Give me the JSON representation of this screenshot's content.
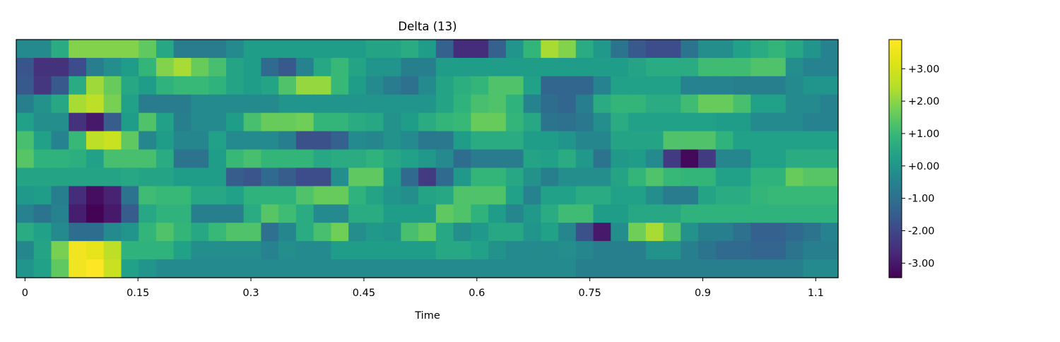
{
  "chart_data": {
    "type": "heatmap",
    "title": "Delta (13)",
    "xlabel": "Time",
    "ylabel": "",
    "x_ticks": [
      {
        "value": 0,
        "label": "0"
      },
      {
        "value": 0.15,
        "label": "0.15"
      },
      {
        "value": 0.3,
        "label": "0.3"
      },
      {
        "value": 0.45,
        "label": "0.45"
      },
      {
        "value": 0.6,
        "label": "0.6"
      },
      {
        "value": 0.75,
        "label": "0.75"
      },
      {
        "value": 0.9,
        "label": "0.9"
      },
      {
        "value": 1.05,
        "label": "1.1"
      }
    ],
    "x_range": [
      -0.0116,
      1.0797
    ],
    "frame_step": 0.02322,
    "n_rows": 13,
    "n_cols": 47,
    "colormap": "viridis",
    "vmin": -3.45,
    "vmax": 3.9,
    "colorbar_ticks": [
      {
        "value": 3,
        "label": "+3.00"
      },
      {
        "value": 2,
        "label": "+2.00"
      },
      {
        "value": 1,
        "label": "+1.00"
      },
      {
        "value": 0,
        "label": "+0.00"
      },
      {
        "value": -1,
        "label": "-1.00"
      },
      {
        "value": -2,
        "label": "-2.00"
      },
      {
        "value": -3,
        "label": "-3.00"
      }
    ],
    "rows": [
      [
        -0.3,
        -0.3,
        0.6,
        1.9,
        1.9,
        1.9,
        1.9,
        1.5,
        0.5,
        -0.7,
        -0.7,
        -0.7,
        -0.3,
        0.2,
        0.2,
        0.2,
        0.2,
        0.2,
        0.2,
        0.2,
        0.4,
        0.4,
        0.6,
        0.2,
        -1.4,
        -2.6,
        -2.6,
        -1.4,
        0.0,
        0.9,
        2.3,
        1.9,
        0.6,
        0.1,
        -0.9,
        -1.6,
        -1.9,
        -1.9,
        -0.9,
        -0.2,
        -0.2,
        0.3,
        0.6,
        0.9,
        0.5,
        0.0,
        -0.5
      ],
      [
        -1.7,
        -2.5,
        -2.5,
        -1.9,
        -0.6,
        -0.2,
        0.2,
        0.9,
        1.9,
        2.3,
        1.6,
        1.2,
        0.4,
        0.2,
        -1.2,
        -1.6,
        -0.5,
        0.5,
        1.0,
        0.4,
        0.0,
        0.0,
        -0.6,
        -0.6,
        0.2,
        0.2,
        0.2,
        0.2,
        0.2,
        0.2,
        0.2,
        0.2,
        0.2,
        0.2,
        0.2,
        0.4,
        0.6,
        0.6,
        0.6,
        1.1,
        1.1,
        1.1,
        1.3,
        1.3,
        -0.2,
        -0.5,
        -0.5
      ],
      [
        -1.6,
        -2.4,
        -1.6,
        0.6,
        2.2,
        1.6,
        0.5,
        0.2,
        0.8,
        1.0,
        1.0,
        0.8,
        0.4,
        0.2,
        0.4,
        1.3,
        2.1,
        2.1,
        1.0,
        0.2,
        -0.3,
        -0.7,
        -1.0,
        -0.3,
        0.4,
        0.7,
        0.9,
        1.3,
        1.3,
        0.3,
        -1.3,
        -1.3,
        -1.3,
        -0.5,
        0.3,
        0.3,
        0.3,
        0.3,
        -0.5,
        -0.5,
        -0.5,
        -0.6,
        -0.6,
        -0.6,
        -0.3,
        0.0,
        0.0
      ],
      [
        -0.6,
        -0.1,
        0.5,
        2.3,
        2.6,
        1.8,
        0.3,
        -0.7,
        -0.7,
        -0.7,
        -0.3,
        -0.3,
        -0.3,
        -0.3,
        -0.3,
        0.0,
        0.0,
        0.0,
        0.0,
        0.0,
        0.0,
        0.0,
        0.0,
        0.0,
        0.4,
        0.8,
        1.2,
        1.3,
        0.8,
        -0.5,
        -1.1,
        -1.3,
        -0.6,
        0.6,
        0.9,
        0.9,
        0.6,
        0.6,
        1.1,
        1.6,
        1.6,
        1.2,
        0.3,
        0.3,
        -0.3,
        -0.3,
        -0.5
      ],
      [
        0.3,
        -0.2,
        -0.2,
        -2.5,
        -3.0,
        -1.5,
        0.2,
        1.3,
        0.3,
        -0.6,
        -0.3,
        -0.3,
        0.2,
        1.2,
        1.6,
        1.6,
        1.7,
        0.9,
        0.9,
        0.6,
        0.5,
        -0.1,
        0.2,
        0.6,
        0.9,
        1.0,
        1.6,
        1.6,
        0.9,
        0.5,
        -0.9,
        -1.0,
        -0.8,
        -0.2,
        0.6,
        0.3,
        0.3,
        0.3,
        0.3,
        0.3,
        0.2,
        0.2,
        -0.3,
        -0.3,
        -0.3,
        -0.5,
        -0.5
      ],
      [
        1.2,
        0.3,
        -0.5,
        1.0,
        2.6,
        2.8,
        1.5,
        -0.4,
        0.2,
        -0.4,
        -0.4,
        0.3,
        -0.3,
        -0.3,
        -0.3,
        -0.6,
        -1.8,
        -1.8,
        -1.4,
        -0.3,
        -0.4,
        -0.1,
        -0.3,
        -0.8,
        -0.8,
        0.2,
        0.6,
        0.6,
        0.6,
        0.2,
        0.2,
        0.0,
        -0.4,
        -0.4,
        0.4,
        0.4,
        0.4,
        1.3,
        1.3,
        1.3,
        0.8,
        0.3,
        0.3,
        0.3,
        0.3,
        0.3,
        0.3
      ],
      [
        1.4,
        0.8,
        0.8,
        0.7,
        0.3,
        1.2,
        1.2,
        1.2,
        0.6,
        -0.9,
        -0.9,
        0.2,
        1.0,
        1.2,
        0.9,
        0.9,
        0.9,
        0.5,
        0.6,
        0.6,
        0.8,
        0.5,
        0.3,
        0.1,
        -0.3,
        -1.1,
        -0.7,
        -0.7,
        -0.7,
        0.4,
        0.3,
        0.6,
        0.1,
        -0.9,
        0.1,
        0.2,
        -0.3,
        -2.3,
        -3.3,
        -2.3,
        -0.4,
        -0.4,
        0.3,
        0.3,
        0.6,
        0.6,
        0.6
      ],
      [
        0.4,
        0.4,
        0.4,
        0.4,
        0.4,
        0.4,
        0.5,
        0.4,
        0.4,
        0.2,
        0.2,
        0.2,
        -1.5,
        -1.7,
        -1.2,
        -1.5,
        -1.9,
        -1.9,
        -0.2,
        1.5,
        1.5,
        0.2,
        -1.2,
        -2.3,
        -1.2,
        0.1,
        0.9,
        0.9,
        0.5,
        -0.1,
        -0.6,
        -0.2,
        -0.2,
        -0.2,
        0.4,
        0.9,
        1.3,
        1.0,
        0.9,
        0.9,
        0.3,
        0.3,
        0.8,
        0.8,
        1.6,
        1.4,
        1.4
      ],
      [
        0.1,
        0.2,
        -0.6,
        -2.6,
        -3.2,
        -2.8,
        -0.9,
        1.1,
        1.0,
        1.0,
        0.5,
        0.5,
        0.3,
        0.8,
        0.8,
        0.8,
        1.3,
        1.6,
        1.6,
        0.8,
        0.4,
        0.0,
        -0.2,
        0.4,
        0.5,
        1.3,
        1.3,
        1.3,
        0.3,
        -0.5,
        0.3,
        0.3,
        0.6,
        0.6,
        0.3,
        0.3,
        -0.2,
        -0.7,
        -0.7,
        0.4,
        0.6,
        0.6,
        0.9,
        1.0,
        1.0,
        1.0,
        1.0
      ],
      [
        -0.5,
        -0.9,
        -0.5,
        -2.9,
        -3.4,
        -3.0,
        -1.5,
        0.5,
        0.8,
        0.8,
        -0.6,
        -0.6,
        -0.6,
        0.6,
        1.4,
        1.1,
        0.6,
        -0.3,
        -0.3,
        0.6,
        0.6,
        0.2,
        0.2,
        0.2,
        1.5,
        1.3,
        0.8,
        0.2,
        -0.4,
        0.1,
        0.6,
        1.1,
        1.1,
        0.2,
        0.2,
        0.5,
        0.5,
        0.5,
        0.8,
        0.8,
        0.8,
        0.8,
        0.8,
        0.8,
        0.8,
        0.8,
        0.8
      ],
      [
        0.6,
        0.3,
        -0.3,
        -1.1,
        -1.1,
        -0.3,
        0.0,
        0.9,
        1.3,
        0.9,
        0.5,
        1.0,
        1.3,
        1.3,
        -1.0,
        -0.4,
        0.6,
        1.2,
        1.7,
        -0.2,
        0.1,
        0.0,
        1.2,
        1.5,
        0.5,
        -0.2,
        0.1,
        0.5,
        0.5,
        0.0,
        0.3,
        -0.4,
        -1.8,
        -3.0,
        -0.2,
        1.7,
        2.3,
        1.4,
        -0.1,
        -0.6,
        -0.6,
        -1.0,
        -1.4,
        -1.4,
        -1.2,
        -0.9,
        -0.5
      ],
      [
        -0.4,
        0.4,
        1.8,
        3.6,
        3.4,
        2.6,
        0.8,
        0.8,
        0.8,
        0.3,
        -0.2,
        -0.2,
        -0.2,
        -0.2,
        -0.5,
        -0.2,
        -0.3,
        -0.3,
        0.2,
        0.2,
        0.2,
        0.2,
        0.2,
        0.2,
        0.5,
        0.5,
        0.3,
        -0.1,
        -0.3,
        -0.3,
        -0.3,
        -0.2,
        -0.4,
        -0.6,
        -0.6,
        -0.6,
        -0.1,
        -0.1,
        -0.6,
        -0.9,
        -1.2,
        -1.2,
        -1.3,
        -1.3,
        -0.9,
        -0.6,
        -0.6
      ],
      [
        0.0,
        0.3,
        1.5,
        3.6,
        3.9,
        2.8,
        0.3,
        0.0,
        -0.3,
        -0.3,
        -0.3,
        -0.3,
        -0.3,
        -0.3,
        -0.3,
        -0.3,
        -0.3,
        -0.3,
        -0.3,
        -0.3,
        -0.3,
        -0.3,
        -0.3,
        -0.3,
        -0.3,
        -0.3,
        -0.3,
        -0.3,
        -0.3,
        -0.3,
        -0.3,
        -0.3,
        -0.6,
        -0.6,
        -0.6,
        -0.6,
        -0.6,
        -0.6,
        -0.6,
        -0.6,
        -0.6,
        -0.6,
        -0.6,
        -0.6,
        -0.6,
        -0.3,
        -0.3
      ]
    ]
  }
}
